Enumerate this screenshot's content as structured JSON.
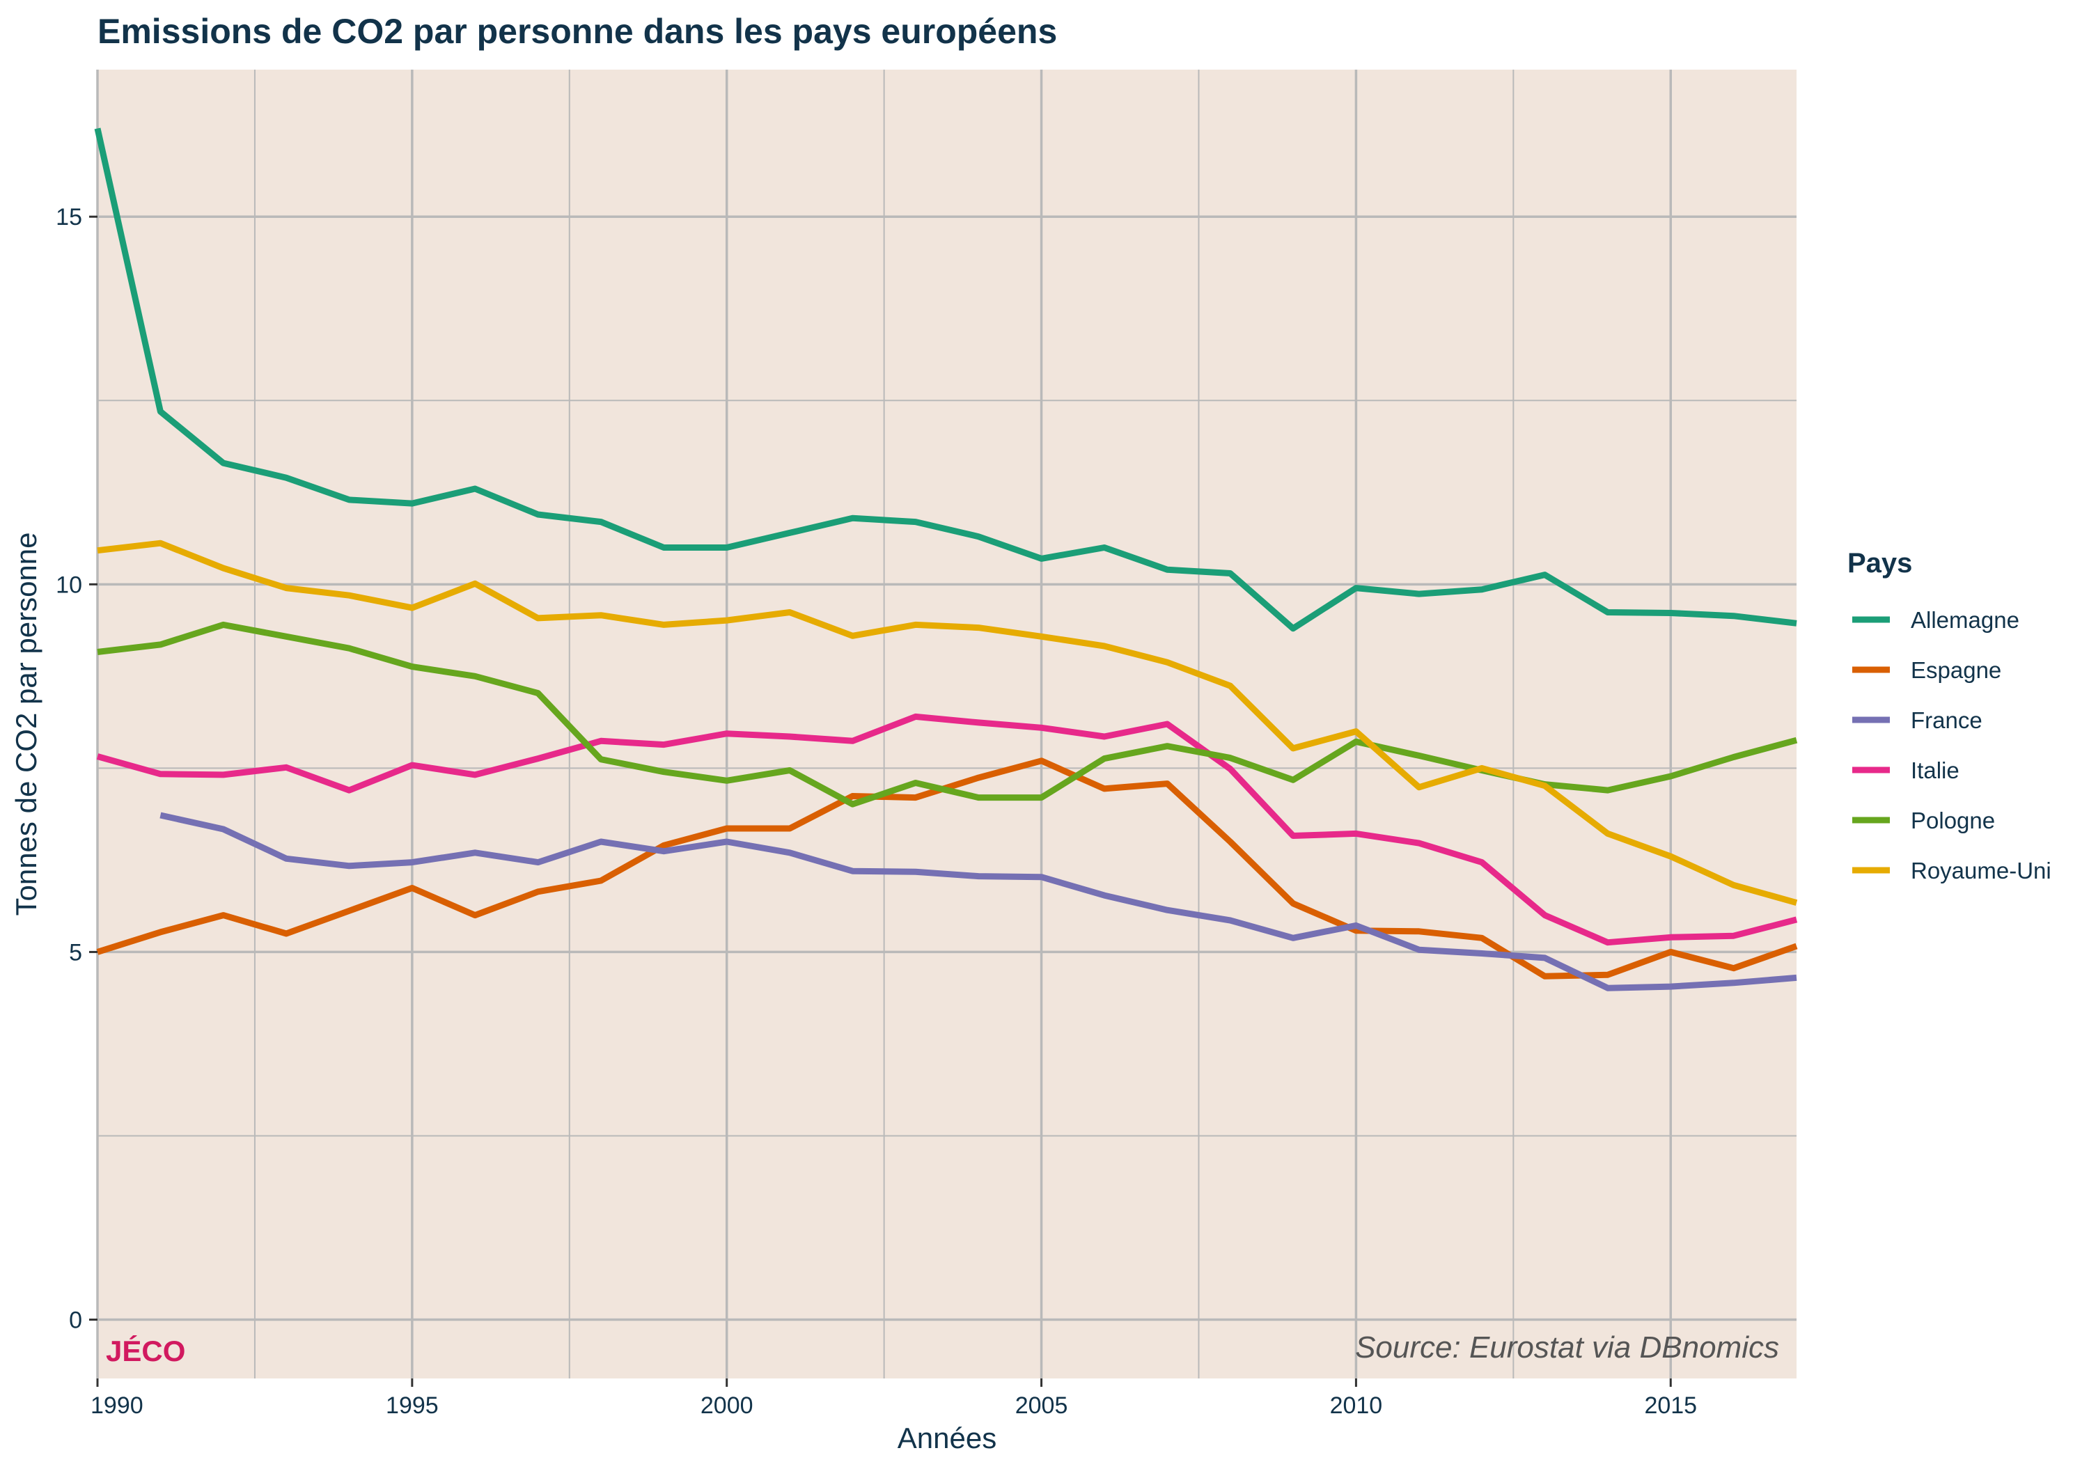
{
  "chart_data": {
    "type": "line",
    "title": "Emissions de CO2 par personne dans les pays européens",
    "xlabel": "Années",
    "ylabel": "Tonnes de CO2 par personne",
    "xlim": [
      1990,
      2017
    ],
    "ylim": [
      -0.8,
      17
    ],
    "x_ticks": [
      "1990",
      "1995",
      "2000",
      "2005",
      "2010",
      "2015"
    ],
    "y_ticks": [
      "0",
      "5",
      "10",
      "15"
    ],
    "grid": true,
    "legend_title": "Pays",
    "legend_position": "right",
    "brand_label": "JÉCO",
    "source": "Source: Eurostat via DBnomics",
    "background_color": "#f1e5dc",
    "grid_color": "#b9b9b9",
    "x": [
      1990,
      1991,
      1992,
      1993,
      1994,
      1995,
      1996,
      1997,
      1998,
      1999,
      2000,
      2001,
      2002,
      2003,
      2004,
      2005,
      2006,
      2007,
      2008,
      2009,
      2010,
      2011,
      2012,
      2013,
      2014,
      2015,
      2016,
      2017
    ],
    "series": [
      {
        "name": "Allemagne",
        "color": "#1b9e77",
        "values": [
          16.2,
          12.35,
          11.65,
          11.45,
          11.15,
          11.1,
          11.3,
          10.95,
          10.85,
          10.5,
          10.5,
          10.7,
          10.9,
          10.85,
          10.65,
          10.35,
          10.5,
          10.2,
          10.15,
          9.4,
          9.95,
          9.87,
          9.93,
          10.13,
          9.62,
          9.61,
          9.57,
          9.47
        ]
      },
      {
        "name": "Espagne",
        "color": "#d95f02",
        "values": [
          5.0,
          5.27,
          5.5,
          5.25,
          5.56,
          5.87,
          5.5,
          5.82,
          5.97,
          6.45,
          6.68,
          6.68,
          7.12,
          7.1,
          7.37,
          7.6,
          7.22,
          7.29,
          6.5,
          5.66,
          5.29,
          5.28,
          5.19,
          4.67,
          4.69,
          5.0,
          4.78,
          5.08
        ]
      },
      {
        "name": "France",
        "color": "#7570b3",
        "values": [
          null,
          6.86,
          6.67,
          6.27,
          6.17,
          6.22,
          6.35,
          6.22,
          6.5,
          6.37,
          6.5,
          6.35,
          6.1,
          6.09,
          6.03,
          6.02,
          5.77,
          5.57,
          5.43,
          5.19,
          5.36,
          5.03,
          4.98,
          4.92,
          4.51,
          4.53,
          4.58,
          4.65
        ]
      },
      {
        "name": "Italie",
        "color": "#e7298a",
        "values": [
          7.66,
          7.42,
          7.41,
          7.51,
          7.2,
          7.54,
          7.41,
          7.63,
          7.87,
          7.82,
          7.97,
          7.93,
          7.87,
          8.2,
          8.12,
          8.05,
          7.93,
          8.1,
          7.49,
          6.58,
          6.61,
          6.48,
          6.22,
          5.5,
          5.13,
          5.2,
          5.22,
          5.44
        ]
      },
      {
        "name": "Pologne",
        "color": "#66a61e",
        "values": [
          9.08,
          9.18,
          9.45,
          9.29,
          9.13,
          8.88,
          8.75,
          8.52,
          7.62,
          7.45,
          7.33,
          7.47,
          7.01,
          7.3,
          7.1,
          7.1,
          7.63,
          7.8,
          7.64,
          7.34,
          7.86,
          7.67,
          7.47,
          7.28,
          7.2,
          7.39,
          7.65,
          7.88
        ]
      },
      {
        "name": "Royaume-Uni",
        "color": "#e6ab02",
        "values": [
          10.46,
          10.56,
          10.22,
          9.95,
          9.85,
          9.68,
          10.01,
          9.54,
          9.58,
          9.45,
          9.51,
          9.62,
          9.3,
          9.45,
          9.41,
          9.29,
          9.16,
          8.94,
          8.62,
          7.77,
          8.0,
          7.24,
          7.5,
          7.26,
          6.61,
          6.3,
          5.91,
          5.67
        ]
      }
    ]
  }
}
